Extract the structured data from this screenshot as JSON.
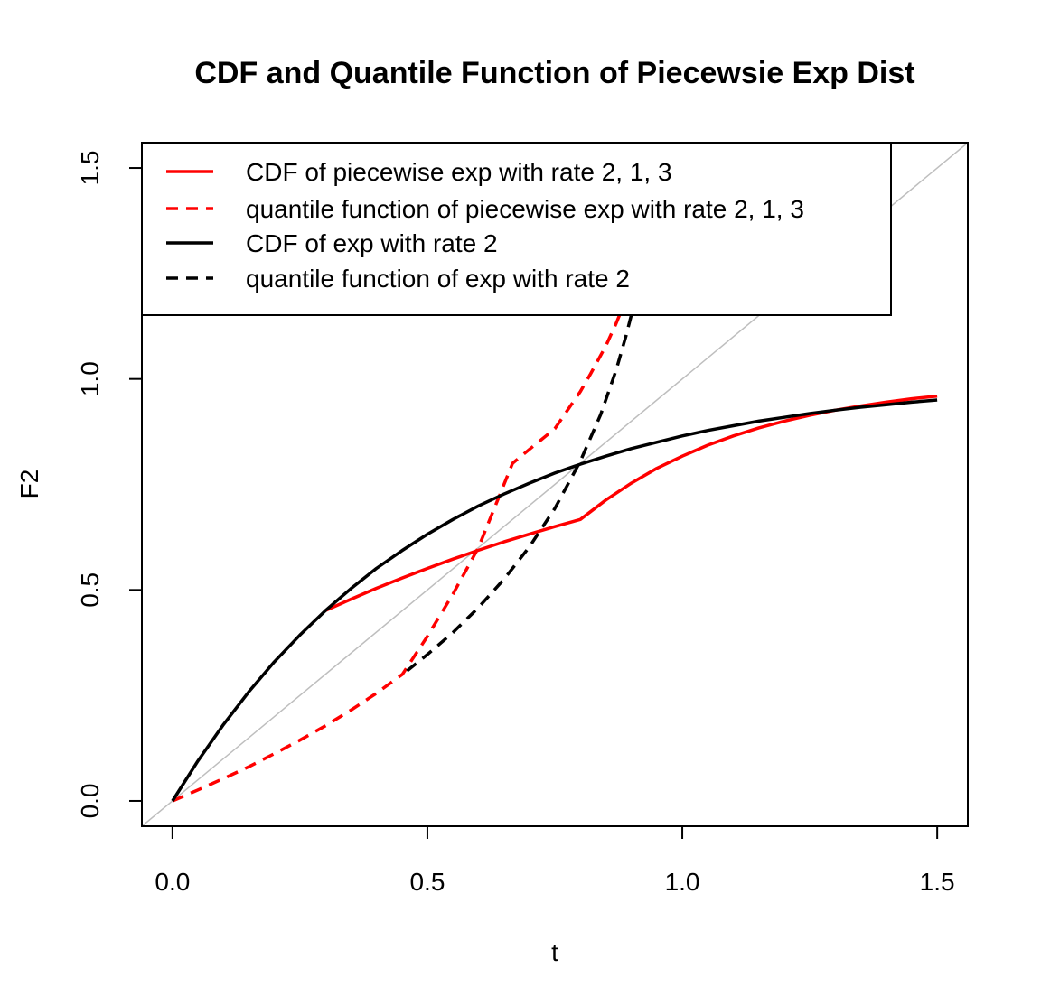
{
  "chart_data": {
    "type": "line",
    "title": "CDF and Quantile Function of Piecewsie Exp Dist",
    "xlabel": "t",
    "ylabel": "F2",
    "xlim": [
      -0.06,
      1.56
    ],
    "ylim": [
      -0.06,
      1.56
    ],
    "xticks": [
      "0.0",
      "0.5",
      "1.0",
      "1.5"
    ],
    "yticks": [
      "0.0",
      "0.5",
      "1.0",
      "1.5"
    ],
    "grid": false,
    "legend_position": "top-left",
    "reference_line": {
      "x": [
        -0.06,
        1.56
      ],
      "y": [
        -0.06,
        1.56
      ],
      "color": "#bebebe"
    },
    "series": [
      {
        "name": "CDF of piecewise exp with rate 2, 1, 3",
        "color": "#ff0000",
        "dash": "solid",
        "x": [
          0.3,
          0.35,
          0.4,
          0.45,
          0.5,
          0.55,
          0.6,
          0.65,
          0.7,
          0.75,
          0.8,
          0.85,
          0.9,
          0.95,
          1.0,
          1.05,
          1.1,
          1.15,
          1.2,
          1.25,
          1.3,
          1.35,
          1.4,
          1.45,
          1.5
        ],
        "y": [
          0.451,
          0.478,
          0.504,
          0.528,
          0.551,
          0.573,
          0.594,
          0.614,
          0.632,
          0.65,
          0.667,
          0.713,
          0.753,
          0.788,
          0.817,
          0.843,
          0.865,
          0.884,
          0.9,
          0.914,
          0.926,
          0.936,
          0.945,
          0.953,
          0.959
        ]
      },
      {
        "name": "quantile function of piecewise exp with rate 2, 1, 3",
        "color": "#ff0000",
        "dash": "dashed",
        "x": [
          0.0,
          0.05,
          0.1,
          0.15,
          0.2,
          0.25,
          0.3,
          0.35,
          0.4,
          0.451,
          0.5,
          0.55,
          0.6,
          0.667,
          0.7,
          0.75,
          0.8,
          0.82,
          0.85,
          0.87,
          0.89
        ],
        "y": [
          0.0,
          0.026,
          0.053,
          0.081,
          0.112,
          0.144,
          0.178,
          0.215,
          0.255,
          0.3,
          0.39,
          0.49,
          0.6,
          0.8,
          0.833,
          0.882,
          0.97,
          1.012,
          1.078,
          1.131,
          1.19
        ]
      },
      {
        "name": "CDF of exp with rate 2",
        "color": "#000000",
        "dash": "solid",
        "x": [
          0.0,
          0.05,
          0.1,
          0.15,
          0.2,
          0.25,
          0.3,
          0.35,
          0.4,
          0.45,
          0.5,
          0.55,
          0.6,
          0.65,
          0.7,
          0.75,
          0.8,
          0.85,
          0.9,
          0.95,
          1.0,
          1.05,
          1.1,
          1.15,
          1.2,
          1.25,
          1.3,
          1.35,
          1.4,
          1.45,
          1.5
        ],
        "y": [
          0.0,
          0.095,
          0.181,
          0.259,
          0.33,
          0.393,
          0.451,
          0.503,
          0.551,
          0.593,
          0.632,
          0.667,
          0.699,
          0.727,
          0.753,
          0.777,
          0.798,
          0.817,
          0.835,
          0.85,
          0.865,
          0.878,
          0.889,
          0.9,
          0.909,
          0.918,
          0.926,
          0.933,
          0.939,
          0.945,
          0.95
        ]
      },
      {
        "name": "quantile function of exp with rate 2",
        "color": "#000000",
        "dash": "dashed",
        "x": [
          0.46,
          0.5,
          0.55,
          0.6,
          0.65,
          0.7,
          0.75,
          0.8,
          0.84,
          0.87,
          0.89,
          0.9
        ],
        "y": [
          0.308,
          0.347,
          0.399,
          0.458,
          0.525,
          0.602,
          0.693,
          0.805,
          0.916,
          1.02,
          1.104,
          1.151
        ]
      }
    ]
  }
}
